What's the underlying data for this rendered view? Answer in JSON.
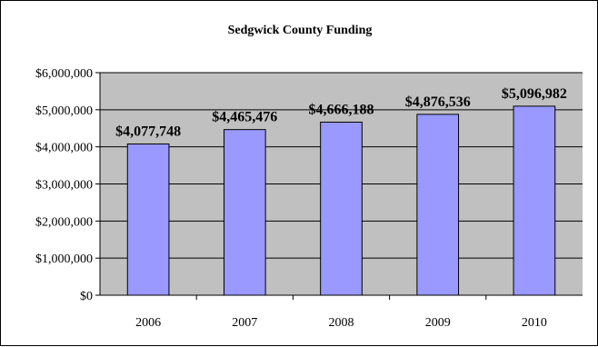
{
  "chart_data": {
    "type": "bar",
    "title": "Sedgwick County Funding",
    "xlabel": "",
    "ylabel": "",
    "categories": [
      "2006",
      "2007",
      "2008",
      "2009",
      "2010"
    ],
    "values": [
      4077748,
      4465476,
      4666188,
      4876536,
      5096982
    ],
    "data_labels": [
      "$4,077,748",
      "$4,465,476",
      "$4,666,188",
      "$4,876,536",
      "$5,096,982"
    ],
    "ylim": [
      0,
      6000000
    ],
    "yticks": [
      0,
      1000000,
      2000000,
      3000000,
      4000000,
      5000000,
      6000000
    ],
    "ytick_labels": [
      "$0",
      "$1,000,000",
      "$2,000,000",
      "$3,000,000",
      "$4,000,000",
      "$5,000,000",
      "$6,000,000"
    ],
    "grid": true,
    "legend": false,
    "colors": {
      "bar_fill": "#9999FF",
      "bar_stroke": "#000000",
      "plot_background": "#C0C0C0",
      "gridline": "#000000"
    }
  }
}
